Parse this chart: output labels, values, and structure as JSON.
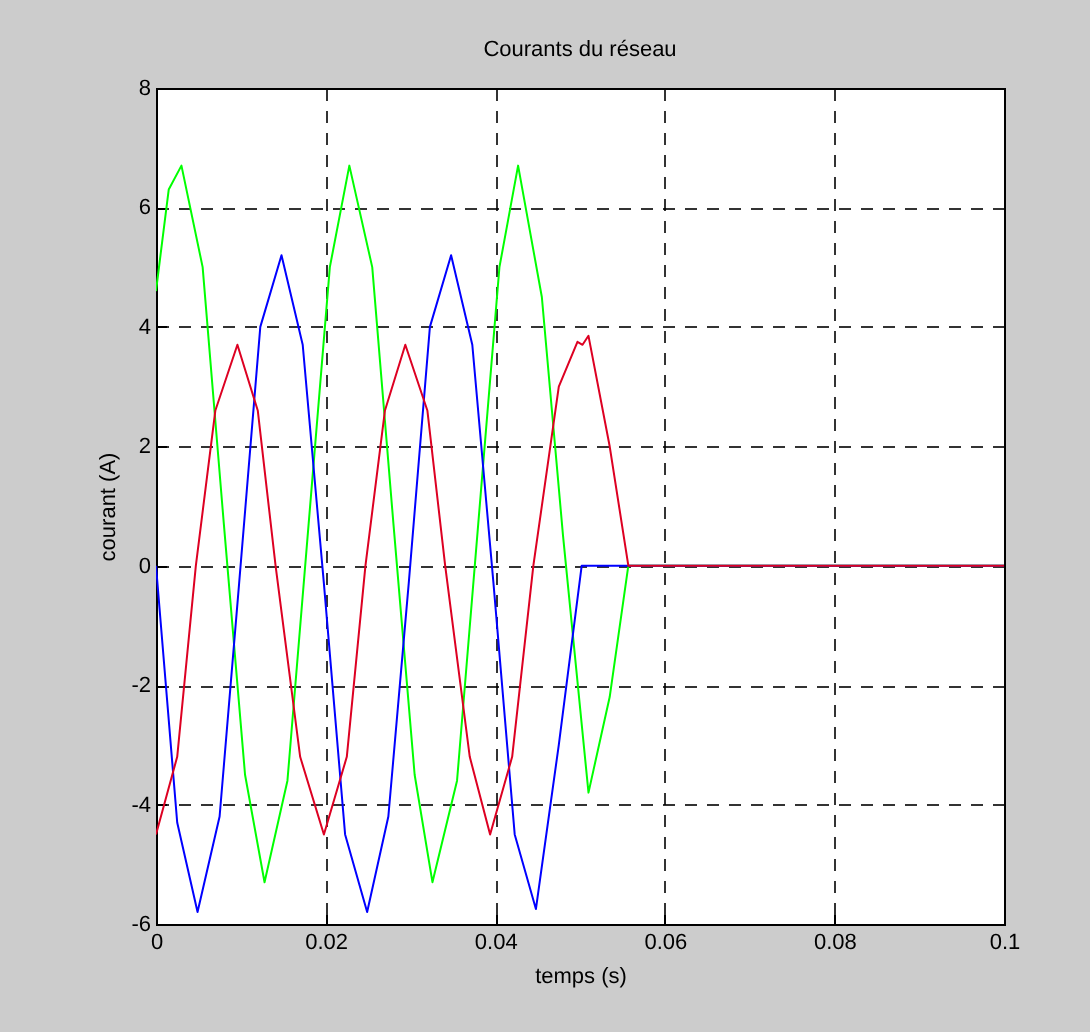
{
  "chart_data": {
    "type": "line",
    "title": "Courants du réseau",
    "xlabel": "temps (s)",
    "ylabel": "courant (A)",
    "xlim": [
      0,
      0.1
    ],
    "xticks": [
      0,
      0.02,
      0.04,
      0.06,
      0.08,
      0.1
    ],
    "ylim": [
      -6,
      8
    ],
    "yticks": [
      -6,
      -4,
      -2,
      0,
      2,
      4,
      6,
      8
    ],
    "grid": true,
    "line_style": "solid",
    "series": [
      {
        "color": "#00ff00",
        "x": [
          0,
          0.0015,
          0.003,
          0.0055,
          0.008,
          0.0105,
          0.0128,
          0.0155,
          0.018,
          0.0205,
          0.0228,
          0.0255,
          0.028,
          0.0305,
          0.0326,
          0.0355,
          0.038,
          0.0405,
          0.0427,
          0.0455,
          0.048,
          0.051,
          0.0535,
          0.0557,
          0.1
        ],
        "values": [
          4.6,
          6.3,
          6.7,
          5.0,
          0.7,
          -3.5,
          -5.3,
          -3.6,
          0.7,
          5.0,
          6.7,
          5.0,
          0.7,
          -3.5,
          -5.3,
          -3.6,
          0.7,
          5.0,
          6.7,
          4.5,
          0.5,
          -3.8,
          -2.2,
          0,
          0
        ]
      },
      {
        "color": "#0000ff",
        "x": [
          0,
          0.0025,
          0.0049,
          0.0075,
          0.0098,
          0.0123,
          0.0148,
          0.0173,
          0.0198,
          0.0223,
          0.0249,
          0.0274,
          0.0298,
          0.0323,
          0.0348,
          0.0373,
          0.0398,
          0.0423,
          0.0448,
          0.0475,
          0.0502,
          0.1
        ],
        "values": [
          0,
          -4.3,
          -5.8,
          -4.2,
          -0.3,
          4.0,
          5.2,
          3.7,
          -0.3,
          -4.5,
          -5.8,
          -4.2,
          -0.3,
          4.0,
          5.2,
          3.7,
          -0.3,
          -4.5,
          -5.75,
          -3.0,
          0,
          0
        ]
      },
      {
        "color": "#dd0022",
        "x": [
          0,
          0.0025,
          0.0047,
          0.007,
          0.0096,
          0.012,
          0.0141,
          0.017,
          0.0198,
          0.0225,
          0.0247,
          0.027,
          0.0294,
          0.032,
          0.0341,
          0.037,
          0.0394,
          0.042,
          0.0445,
          0.0475,
          0.0497,
          0.0503,
          0.051,
          0.0535,
          0.0557,
          0.1
        ],
        "values": [
          -4.5,
          -3.2,
          0,
          2.6,
          3.7,
          2.6,
          0,
          -3.2,
          -4.5,
          -3.2,
          0,
          2.6,
          3.7,
          2.6,
          0,
          -3.2,
          -4.5,
          -3.2,
          0,
          3.0,
          3.75,
          3.7,
          3.85,
          2.0,
          0,
          0
        ]
      }
    ]
  }
}
